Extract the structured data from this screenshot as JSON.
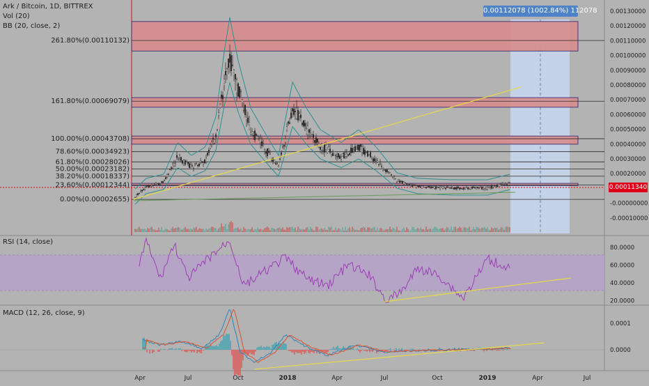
{
  "legend": {
    "symbol": "Ark / Bitcoin, 1D, BITTREX",
    "volume": "Vol (20)",
    "bollinger": "BB (20, close, 2)",
    "rsi": "RSI (14, close)",
    "macd": "MACD (12, 26, close, 9)"
  },
  "measure_tooltip": "0.00112078 (1002.84%) 112078",
  "last_price": "0.00011340",
  "fib_levels": [
    {
      "label": "261.80%(0.00110132)",
      "value": 0.00110132
    },
    {
      "label": "161.80%(0.00069079)",
      "value": 0.00069079
    },
    {
      "label": "100.00%(0.00043708)",
      "value": 0.00043708
    },
    {
      "label": "78.60%(0.00034923)",
      "value": 0.00034923
    },
    {
      "label": "61.80%(0.00028026)",
      "value": 0.00028026
    },
    {
      "label": "50.00%(0.00023182)",
      "value": 0.00023182
    },
    {
      "label": "38.20%(0.00018337)",
      "value": 0.00018337
    },
    {
      "label": "23.60%(0.00012344)",
      "value": 0.00012344
    },
    {
      "label": "0.00%(0.00002655)",
      "value": 2.655e-05
    }
  ],
  "price_axis": [
    "0.00130000",
    "0.00120000",
    "0.00110000",
    "0.00100000",
    "0.00090000",
    "0.00080000",
    "0.00070000",
    "0.00060000",
    "0.00050000",
    "0.00040000",
    "0.00030000",
    "0.00020000",
    "0.00010000",
    "-0.00000000",
    "-0.00010000"
  ],
  "rsi_axis": [
    "80.0000",
    "60.0000",
    "40.0000",
    "20.0000"
  ],
  "macd_axis": [
    "0.0001",
    "0.0000"
  ],
  "time_axis": [
    "Apr",
    "Jul",
    "Oct",
    "2018",
    "Apr",
    "Jul",
    "Oct",
    "2019",
    "Apr",
    "Jul"
  ],
  "colors": {
    "background": "#b3b3b3",
    "fib_zone": "#d88d8d",
    "fib_border": "#3b2e6e",
    "trendline": "#e8d84a",
    "bb_band": "#2f8f8f",
    "rsi_line": "#9c3fb6",
    "rsi_band": "#b89ecf",
    "macd_line": "#2f86b8",
    "signal_line": "#d9532f",
    "measure_zone": "#c6d7ee",
    "last_price": "#e0001a",
    "tooltip": "#4f83c9"
  }
}
